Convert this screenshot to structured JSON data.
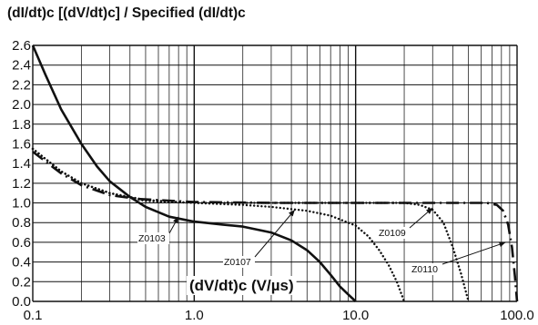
{
  "chart_data": {
    "type": "line",
    "title": "(dI/dt)c [(dV/dt)c] / Specified (dI/dt)c",
    "xlabel": "(dV/dt)c (V/µs)",
    "ylabel": "",
    "x_scale": "log",
    "xlim": [
      0.1,
      100
    ],
    "ylim": [
      0,
      2.6
    ],
    "x_ticks": [
      "0.1",
      "1.0",
      "10.0",
      "100.0"
    ],
    "y_ticks": [
      "0.0",
      "0.2",
      "0.4",
      "0.6",
      "0.8",
      "1.0",
      "1.2",
      "1.4",
      "1.6",
      "1.8",
      "2.0",
      "2.2",
      "2.4",
      "2.6"
    ],
    "grid": true,
    "series": [
      {
        "name": "Z0103",
        "style": "solid",
        "x": [
          0.1,
          0.12,
          0.15,
          0.2,
          0.25,
          0.3,
          0.4,
          0.5,
          0.7,
          1.0,
          1.5,
          2.0,
          3.0,
          4.0,
          5.0,
          6.0,
          7.0,
          8.0,
          9.0,
          10.0
        ],
        "y": [
          2.6,
          2.3,
          1.95,
          1.6,
          1.37,
          1.22,
          1.06,
          0.96,
          0.86,
          0.81,
          0.78,
          0.76,
          0.7,
          0.62,
          0.52,
          0.4,
          0.27,
          0.15,
          0.07,
          0.0
        ]
      },
      {
        "name": "Z0107",
        "style": "dotted",
        "x": [
          0.1,
          0.15,
          0.2,
          0.3,
          0.5,
          1.0,
          2.0,
          3.0,
          5.0,
          7.0,
          10.0,
          12.0,
          14.0,
          16.0,
          18.0,
          20.0
        ],
        "y": [
          1.55,
          1.32,
          1.2,
          1.1,
          1.02,
          1.0,
          0.98,
          0.96,
          0.92,
          0.87,
          0.77,
          0.66,
          0.52,
          0.37,
          0.2,
          0.0
        ]
      },
      {
        "name": "Z0109",
        "style": "dotted",
        "x": [
          0.1,
          0.15,
          0.2,
          0.3,
          0.5,
          1.0,
          3.0,
          10.0,
          20.0,
          25.0,
          30.0,
          35.0,
          40.0,
          45.0,
          50.0
        ],
        "y": [
          1.55,
          1.32,
          1.2,
          1.1,
          1.03,
          1.0,
          1.0,
          1.0,
          1.0,
          0.98,
          0.93,
          0.8,
          0.55,
          0.28,
          0.0
        ]
      },
      {
        "name": "Z0110",
        "style": "dashdot",
        "x": [
          0.1,
          0.15,
          0.2,
          0.3,
          0.45,
          1.0,
          3.0,
          10.0,
          30.0,
          50.0,
          65.0,
          75.0,
          82.0,
          88.0,
          93.0,
          97.0,
          100.0
        ],
        "y": [
          1.52,
          1.3,
          1.18,
          1.08,
          1.04,
          1.01,
          1.0,
          1.0,
          1.0,
          1.0,
          1.0,
          0.98,
          0.92,
          0.78,
          0.55,
          0.25,
          0.0
        ]
      }
    ],
    "annotations": [
      "Z0103",
      "Z0107",
      "Z0109",
      "Z0110"
    ]
  }
}
